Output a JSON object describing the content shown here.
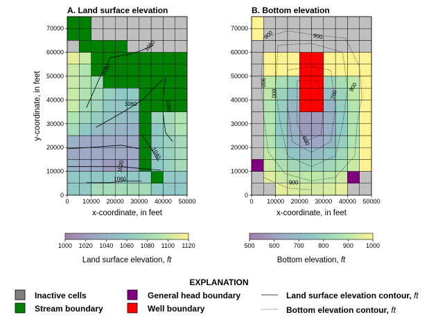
{
  "chart_data": [
    {
      "type": "heatmap",
      "panel": "A",
      "title": "A. Land surface elevation",
      "xlabel": "x-coordinate, in feet",
      "ylabel": "y-coordinate, in feet",
      "xlim": [
        0,
        50000
      ],
      "ylim": [
        0,
        75000
      ],
      "xticks": [
        "0",
        "10000",
        "20000",
        "30000",
        "40000",
        "50000"
      ],
      "yticks": [
        "0",
        "10000",
        "20000",
        "30000",
        "40000",
        "50000",
        "60000",
        "70000"
      ],
      "ncol": 10,
      "nrow": 15,
      "cell_size_ft": 5000,
      "colorbar": {
        "label": "Land surface elevation,",
        "label_unit": "ft",
        "range": [
          1000,
          1120
        ],
        "ticks": [
          "1000",
          "1020",
          "1040",
          "1060",
          "1080",
          "1100",
          "1120"
        ]
      },
      "contour_labels": [
        "1080",
        "1080",
        "1060",
        "1080",
        "1040",
        "1020",
        "1060"
      ]
    },
    {
      "type": "heatmap",
      "panel": "B",
      "title": "B. Bottom elevation",
      "xlabel": "x-coordinate, in feet",
      "ylabel": "",
      "xlim": [
        0,
        50000
      ],
      "ylim": [
        0,
        75000
      ],
      "xticks": [
        "0",
        "10000",
        "20000",
        "30000",
        "40000",
        "50000"
      ],
      "yticks": [
        "0",
        "10000",
        "20000",
        "30000",
        "40000",
        "50000",
        "60000",
        "70000"
      ],
      "ncol": 10,
      "nrow": 15,
      "cell_size_ft": 5000,
      "colorbar": {
        "label": "Bottom elevation,",
        "label_unit": "ft",
        "range": [
          500,
          1000
        ],
        "ticks": [
          "500",
          "600",
          "700",
          "800",
          "900",
          "1000"
        ]
      },
      "contour_labels": [
        "900",
        "900",
        "900",
        "800",
        "700",
        "900",
        "600",
        "900"
      ]
    }
  ],
  "grid_A": [
    [
      1060,
      1060,
      1060,
      1060,
      1060,
      1060,
      1060,
      1060,
      1060,
      1060
    ],
    [
      1060,
      1060,
      1060,
      1060,
      1060,
      1060,
      1060,
      1060,
      1060,
      1060
    ],
    [
      1060,
      1060,
      1060,
      1060,
      1060,
      1060,
      1060,
      1060,
      1060,
      1060
    ],
    [
      1110,
      1100,
      1080,
      1070,
      1060,
      1060,
      1060,
      1070,
      1080,
      1090
    ],
    [
      1100,
      1090,
      1080,
      1070,
      1060,
      1060,
      1060,
      1070,
      1080,
      1090
    ],
    [
      1100,
      1090,
      1080,
      1070,
      1060,
      1060,
      1060,
      1070,
      1080,
      1090
    ],
    [
      1100,
      1090,
      1080,
      1070,
      1060,
      1060,
      1060,
      1070,
      1080,
      1090
    ],
    [
      1100,
      1080,
      1075,
      1060,
      1055,
      1060,
      1060,
      1070,
      1080,
      1090
    ],
    [
      1090,
      1075,
      1065,
      1055,
      1050,
      1050,
      1055,
      1070,
      1080,
      1090
    ],
    [
      1080,
      1060,
      1050,
      1045,
      1040,
      1040,
      1050,
      1060,
      1075,
      1090
    ],
    [
      1040,
      1030,
      1030,
      1030,
      1030,
      1030,
      1040,
      1060,
      1070,
      1080
    ],
    [
      1030,
      1030,
      1030,
      1030,
      1030,
      1030,
      1040,
      1060,
      1070,
      1080
    ],
    [
      1040,
      1030,
      1030,
      1020,
      1020,
      1030,
      1040,
      1060,
      1070,
      1080
    ],
    [
      1060,
      1060,
      1060,
      1060,
      1060,
      1060,
      1060,
      1060,
      1060,
      1060
    ],
    [
      1060,
      1060,
      1080,
      1080,
      1080,
      1080,
      1080,
      1060,
      1060,
      1060
    ]
  ],
  "status_A": [
    "SSIIIIIIII",
    "SSIIIIIIII",
    "ISSSSIIIII",
    "AASSSSSSSS",
    "AASSSSSSSS",
    "AAASSSSSSS",
    "AAAAAASSSS",
    "AAAAAASSSS",
    "AAAAAASAAA",
    "AAAAAASAAA",
    "AAAAAASAAA",
    "AAAAAASAAA",
    "AAAAAASAAA",
    "AAAAAAASAA",
    "AAAAAAAAAA"
  ],
  "grid_B": [
    [
      1000,
      1000,
      1000,
      1000,
      1000,
      1000,
      1000,
      1000,
      1000,
      1000
    ],
    [
      1000,
      1000,
      1000,
      1000,
      1000,
      1000,
      1000,
      1000,
      1000,
      1000
    ],
    [
      1000,
      1000,
      1000,
      1000,
      1000,
      1000,
      1000,
      1000,
      1000,
      1000
    ],
    [
      1000,
      1000,
      1000,
      1000,
      1000,
      1000,
      1000,
      1000,
      1000,
      1000
    ],
    [
      1000,
      1000,
      1000,
      1000,
      1000,
      1000,
      1000,
      1000,
      1000,
      1000
    ],
    [
      1000,
      900,
      850,
      800,
      780,
      780,
      800,
      850,
      900,
      1000
    ],
    [
      1000,
      900,
      800,
      720,
      680,
      680,
      720,
      800,
      900,
      1000
    ],
    [
      1000,
      880,
      780,
      680,
      600,
      600,
      680,
      780,
      880,
      1000
    ],
    [
      1000,
      880,
      760,
      650,
      580,
      580,
      650,
      760,
      880,
      1000
    ],
    [
      1000,
      880,
      760,
      650,
      580,
      580,
      650,
      760,
      880,
      1000
    ],
    [
      1000,
      880,
      780,
      680,
      620,
      620,
      680,
      780,
      880,
      1000
    ],
    [
      1000,
      900,
      820,
      740,
      700,
      700,
      740,
      820,
      900,
      1000
    ],
    [
      1000,
      920,
      860,
      820,
      800,
      800,
      820,
      860,
      920,
      1000
    ],
    [
      1000,
      950,
      920,
      900,
      900,
      900,
      900,
      920,
      950,
      1000
    ],
    [
      1000,
      1000,
      960,
      940,
      930,
      930,
      940,
      960,
      1000,
      1000
    ]
  ],
  "status_B": [
    "AIIIIIIIII",
    "AIIIIIIIII",
    "IIIIIIIIII",
    "IAAAAAAAAA",
    "IAAAAAAAAA",
    "IAAAAAAAAA",
    "IAAAAAAAAA",
    "IAAAAAAAAA",
    "IAAAAAAAAA",
    "IAAAAAAAAA",
    "IAAAAAAAAA",
    "IAAAAAAAAA",
    "GAAAAAAAAA",
    "IAAAAAAAGI",
    "IIAAAAAAII"
  ],
  "wells_B": [
    [
      3,
      4
    ],
    [
      3,
      5
    ],
    [
      4,
      4
    ],
    [
      4,
      5
    ],
    [
      5,
      4
    ],
    [
      5,
      5
    ],
    [
      6,
      4
    ],
    [
      6,
      5
    ],
    [
      7,
      4
    ],
    [
      7,
      5
    ]
  ],
  "palette": {
    "inactive": "#808080",
    "stream": "#008000",
    "ghb": "#800080",
    "well": "#ff0000",
    "alpha": 0.5
  },
  "legend": {
    "title": "EXPLANATION",
    "items": [
      {
        "label": "Inactive cells",
        "kind": "inactive"
      },
      {
        "label": "Stream boundary",
        "kind": "stream"
      },
      {
        "label": "General head boundary",
        "kind": "ghb"
      },
      {
        "label": "Well boundary",
        "kind": "well"
      },
      {
        "label": "Land surface elevation contour,",
        "unit": "ft",
        "kind": "solid"
      },
      {
        "label": "Bottom elevation contour,",
        "unit": "ft",
        "kind": "dotted"
      }
    ]
  }
}
